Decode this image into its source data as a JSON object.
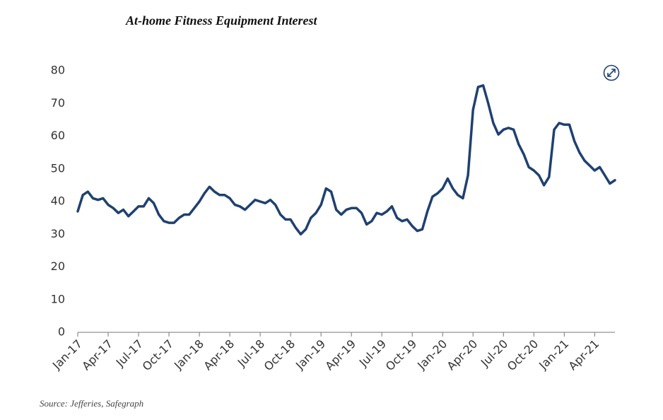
{
  "chart_data": {
    "type": "line",
    "title": "At-home Fitness Equipment Interest",
    "source": "Source: Jefferies, Safegraph",
    "categories": [
      "Jan-17",
      null,
      null,
      null,
      null,
      null,
      "Apr-17",
      null,
      null,
      null,
      null,
      null,
      "Jul-17",
      null,
      null,
      null,
      null,
      null,
      "Oct-17",
      null,
      null,
      null,
      null,
      null,
      "Jan-18",
      null,
      null,
      null,
      null,
      null,
      "Apr-18",
      null,
      null,
      null,
      null,
      null,
      "Jul-18",
      null,
      null,
      null,
      null,
      null,
      "Oct-18",
      null,
      null,
      null,
      null,
      null,
      "Jan-19",
      null,
      null,
      null,
      null,
      null,
      "Apr-19",
      null,
      null,
      null,
      null,
      null,
      "Jul-19",
      null,
      null,
      null,
      null,
      null,
      "Oct-19",
      null,
      null,
      null,
      null,
      null,
      "Jan-20",
      null,
      null,
      null,
      null,
      null,
      "Apr-20",
      null,
      null,
      null,
      null,
      null,
      "Jul-20",
      null,
      null,
      null,
      null,
      null,
      "Oct-20",
      null,
      null,
      null,
      null,
      null,
      "Jan-21",
      null,
      null,
      null,
      null,
      null,
      "Apr-21",
      null,
      null,
      null,
      null
    ],
    "series": [
      {
        "color": "#1f4170",
        "values": [
          37,
          42,
          43,
          41,
          40.5,
          41,
          39,
          38,
          36.5,
          37.5,
          35.5,
          37,
          38.5,
          38.5,
          41,
          39.5,
          36,
          34,
          33.5,
          33.5,
          35,
          36,
          36,
          38,
          40,
          42.5,
          44.5,
          43,
          42,
          42,
          41,
          39,
          38.5,
          37.5,
          39,
          40.5,
          40,
          39.5,
          40.5,
          39,
          36,
          34.5,
          34.5,
          32,
          30,
          31.5,
          35,
          36.5,
          39,
          44,
          43,
          37.5,
          36,
          37.5,
          38,
          38,
          36.5,
          33,
          34,
          36.5,
          36,
          37,
          38.5,
          35,
          34,
          34.5,
          32.5,
          31,
          31.5,
          37,
          41.5,
          42.5,
          44,
          47,
          44,
          42,
          41,
          48,
          68,
          75,
          75.5,
          70,
          64,
          60.5,
          62,
          62.5,
          62,
          57.5,
          54.5,
          50.5,
          49.5,
          48,
          45,
          47.5,
          62,
          64,
          63.5,
          63.5,
          58.5,
          55,
          52.5,
          51,
          49.5,
          50.5,
          48,
          45.5,
          46.5
        ]
      }
    ],
    "ylim": [
      0,
      80
    ],
    "yticks": [
      0,
      10,
      20,
      30,
      40,
      50,
      60,
      70,
      80
    ],
    "grid": false
  }
}
